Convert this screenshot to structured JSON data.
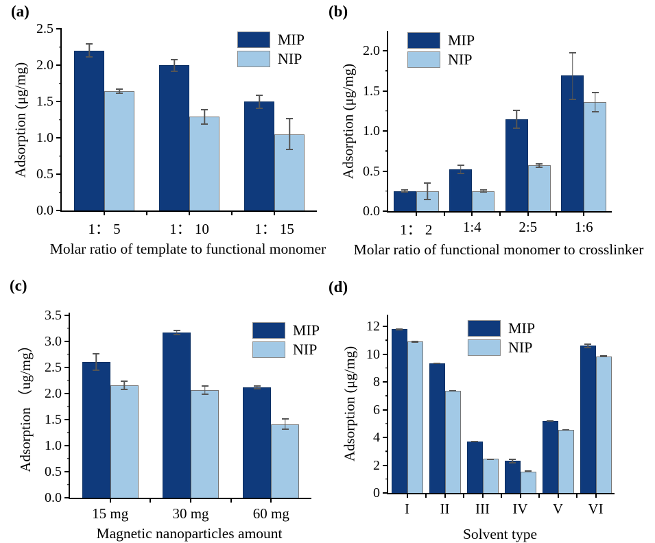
{
  "figure": {
    "background": "#ffffff",
    "colors": {
      "mip_fill": "#0f3a7c",
      "mip_border": "#0b2f63",
      "nip_fill": "#a2c9e6",
      "nip_border": "#767676",
      "error_bar": "#555555",
      "axis": "#000000",
      "legend_swatch_border": "#8a8a8a"
    }
  },
  "chart_data": [
    {
      "panel": "(a)",
      "type": "bar",
      "categories": [
        "1： 5",
        "1： 10",
        "1： 15"
      ],
      "series": [
        {
          "name": "MIP",
          "values": [
            2.2,
            2.0,
            1.5
          ],
          "errors": [
            0.1,
            0.09,
            0.1
          ]
        },
        {
          "name": "NIP",
          "values": [
            1.64,
            1.29,
            1.05
          ],
          "errors": [
            0.04,
            0.11,
            0.22
          ]
        }
      ],
      "xlabel": "Molar ratio of template to functional monomer",
      "ylabel": "Adsorption (μg/mg)",
      "ylim": [
        0,
        2.5
      ],
      "yticks": [
        "0.0",
        "0.5",
        "1.0",
        "1.5",
        "2.0",
        "2.5"
      ],
      "grid": false,
      "legend_position": "top-right"
    },
    {
      "panel": "(b)",
      "type": "bar",
      "categories": [
        "1： 2",
        "1:4",
        "2:5",
        "1:6"
      ],
      "series": [
        {
          "name": "MIP",
          "values": [
            0.25,
            0.52,
            1.15,
            1.69
          ],
          "errors": [
            0.02,
            0.06,
            0.12,
            0.3
          ]
        },
        {
          "name": "NIP",
          "values": [
            0.25,
            0.25,
            0.57,
            1.36
          ],
          "errors": [
            0.11,
            0.02,
            0.03,
            0.13
          ]
        }
      ],
      "xlabel": "Molar ratio of functional monomer to crosslinker",
      "ylabel": "Adsorption (μg/mg)",
      "ylim": [
        0,
        2.25
      ],
      "yticks": [
        "0.0",
        "0.5",
        "1.0",
        "1.5",
        "2.0"
      ],
      "grid": false,
      "legend_position": "top-left"
    },
    {
      "panel": "(c)",
      "type": "bar",
      "categories": [
        "15 mg",
        "30 mg",
        "60 mg"
      ],
      "series": [
        {
          "name": "MIP",
          "values": [
            2.6,
            3.17,
            2.12
          ],
          "errors": [
            0.17,
            0.05,
            0.04
          ]
        },
        {
          "name": "NIP",
          "values": [
            2.16,
            2.06,
            1.41
          ],
          "errors": [
            0.09,
            0.09,
            0.11
          ]
        }
      ],
      "xlabel": "Magnetic nanoparticles amount",
      "ylabel": "Adsorption （ug/mg）",
      "ylim": [
        0,
        3.55
      ],
      "yticks": [
        "0.0",
        "0.5",
        "1.0",
        "1.5",
        "2.0",
        "2.5",
        "3.0",
        "3.5"
      ],
      "grid": false,
      "legend_position": "top-right"
    },
    {
      "panel": "(d)",
      "type": "bar",
      "categories": [
        "I",
        "II",
        "III",
        "IV",
        "V",
        "VI"
      ],
      "series": [
        {
          "name": "MIP",
          "values": [
            11.8,
            9.35,
            3.7,
            2.3,
            5.2,
            10.6
          ],
          "errors": [
            0.08,
            0.05,
            0.05,
            0.18,
            0.05,
            0.18
          ]
        },
        {
          "name": "NIP",
          "values": [
            10.9,
            7.35,
            2.45,
            1.55,
            4.55,
            9.85
          ],
          "errors": [
            0.07,
            0.05,
            0.06,
            0.04,
            0.06,
            0.08
          ]
        }
      ],
      "xlabel": "Solvent type",
      "ylabel": "Adsorption (μg/mg)",
      "ylim": [
        0,
        12.84
      ],
      "yticks": [
        "0",
        "2",
        "4",
        "6",
        "8",
        "10",
        "12"
      ],
      "grid": false,
      "legend_position": "top-center"
    }
  ]
}
